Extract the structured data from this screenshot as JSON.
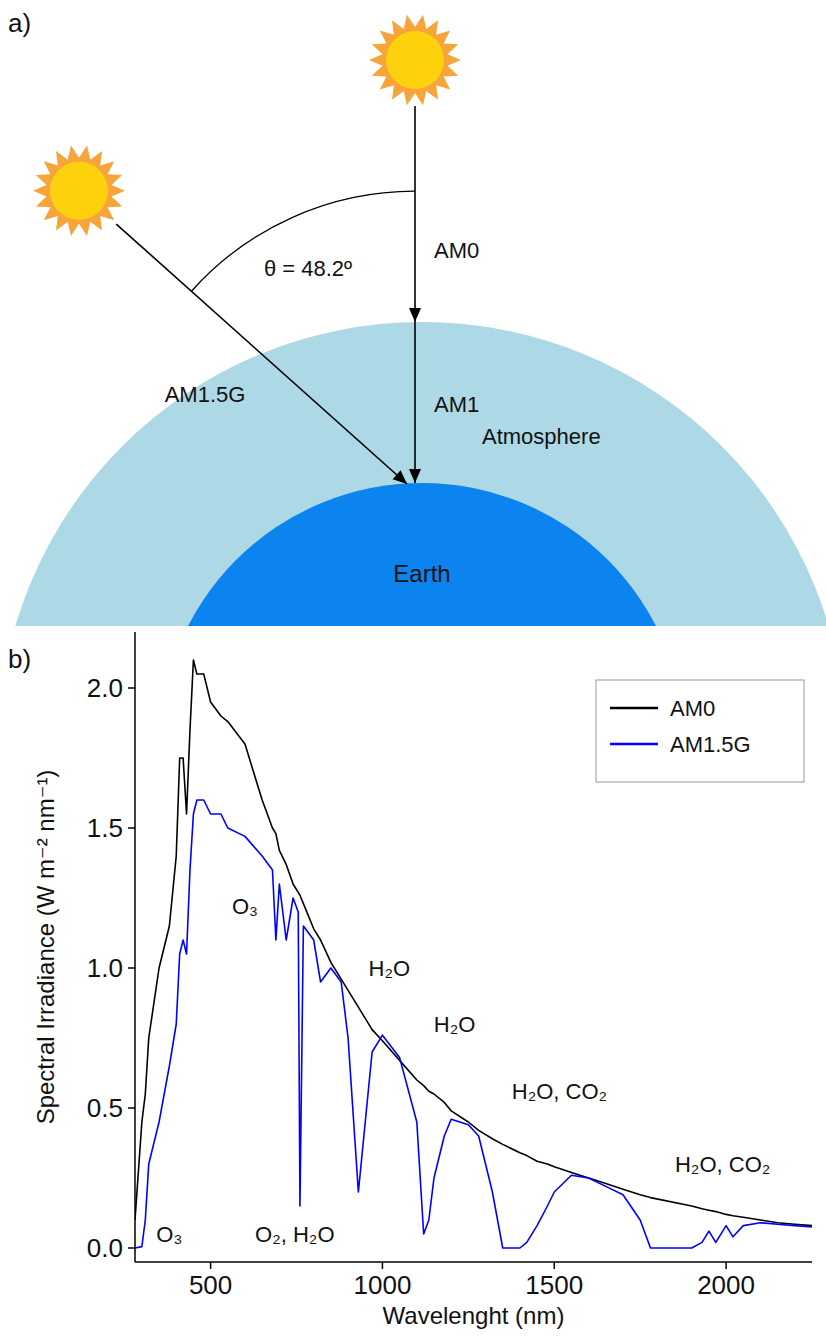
{
  "diagram": {
    "panel": "a)",
    "zenith": {
      "label": "θ = 48.2º",
      "angle": 48.2
    },
    "beams": [
      {
        "label": "AM0"
      },
      {
        "label": "AM1"
      },
      {
        "label": "AM1.5G"
      }
    ],
    "layers": [
      {
        "label": "Atmosphere"
      },
      {
        "label": "Earth"
      }
    ]
  },
  "chart_data": {
    "type": "line",
    "panel": "b)",
    "x_label": "Wavelenght (nm)",
    "y_label": "Spectral Irradiance (W m⁻² nm⁻¹)",
    "x": [
      280,
      300,
      310,
      320,
      350,
      380,
      400,
      410,
      420,
      430,
      440,
      450,
      460,
      480,
      500,
      530,
      550,
      600,
      650,
      680,
      690,
      700,
      720,
      740,
      755,
      760,
      770,
      800,
      820,
      850,
      880,
      900,
      930,
      950,
      970,
      1000,
      1050,
      1100,
      1120,
      1135,
      1150,
      1180,
      1200,
      1250,
      1280,
      1320,
      1350,
      1400,
      1420,
      1450,
      1480,
      1500,
      1550,
      1600,
      1650,
      1700,
      1750,
      1780,
      1900,
      1930,
      1950,
      1970,
      2000,
      2020,
      2050,
      2100,
      2150,
      2200,
      2250
    ],
    "series": [
      {
        "name": "AM0",
        "color": "#000000",
        "values": [
          0.1,
          0.45,
          0.55,
          0.75,
          1.0,
          1.15,
          1.4,
          1.75,
          1.75,
          1.55,
          1.85,
          2.1,
          2.05,
          2.05,
          1.95,
          1.9,
          1.88,
          1.8,
          1.6,
          1.5,
          1.48,
          1.42,
          1.37,
          1.3,
          1.27,
          1.26,
          1.23,
          1.14,
          1.1,
          1.02,
          0.96,
          0.92,
          0.86,
          0.82,
          0.78,
          0.74,
          0.67,
          0.6,
          0.58,
          0.56,
          0.55,
          0.52,
          0.49,
          0.45,
          0.42,
          0.39,
          0.37,
          0.34,
          0.33,
          0.31,
          0.3,
          0.29,
          0.27,
          0.25,
          0.23,
          0.21,
          0.19,
          0.18,
          0.15,
          0.14,
          0.135,
          0.13,
          0.12,
          0.115,
          0.11,
          0.1,
          0.09,
          0.085,
          0.08
        ]
      },
      {
        "name": "AM1.5G",
        "color": "#0000ff",
        "values": [
          0,
          0.005,
          0.1,
          0.3,
          0.45,
          0.65,
          0.8,
          1.05,
          1.1,
          1.05,
          1.35,
          1.55,
          1.6,
          1.6,
          1.55,
          1.55,
          1.5,
          1.47,
          1.4,
          1.35,
          1.1,
          1.3,
          1.1,
          1.25,
          1.2,
          0.15,
          1.15,
          1.1,
          0.95,
          1.0,
          0.95,
          0.75,
          0.2,
          0.45,
          0.7,
          0.76,
          0.68,
          0.45,
          0.05,
          0.1,
          0.25,
          0.4,
          0.46,
          0.44,
          0.4,
          0.2,
          0,
          0,
          0.02,
          0.08,
          0.15,
          0.2,
          0.26,
          0.25,
          0.22,
          0.19,
          0.1,
          0,
          0,
          0.02,
          0.06,
          0.02,
          0.08,
          0.04,
          0.08,
          0.09,
          0.085,
          0.08,
          0.075
        ]
      }
    ],
    "xlim": [
      280,
      2250
    ],
    "xticks": [
      500,
      1000,
      1500,
      2000
    ],
    "ylim": [
      -0.05,
      2.2
    ],
    "yticks": [
      {
        "value": 0,
        "label": "0.0"
      },
      0.5,
      {
        "value": 1,
        "label": "1.0"
      },
      1.5,
      {
        "value": 2,
        "label": "2.0"
      }
    ],
    "legend": "upper right",
    "grid": false,
    "annotations": [
      {
        "text": "O₃",
        "x": 600,
        "y": 1.22
      },
      {
        "text": "H₂O",
        "x": 1020,
        "y": 1.0
      },
      {
        "text": "H₂O",
        "x": 1210,
        "y": 0.8
      },
      {
        "text": "H₂O, CO₂",
        "x": 1515,
        "y": 0.56
      },
      {
        "text": "H₂O, CO₂",
        "x": 1990,
        "y": 0.3
      },
      {
        "text": "O₃",
        "x": 380,
        "y": 0.05
      },
      {
        "text": "O₂, H₂O",
        "x": 745,
        "y": 0.05
      }
    ]
  }
}
